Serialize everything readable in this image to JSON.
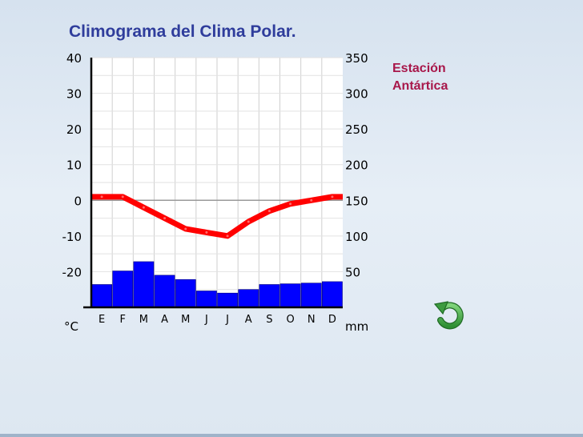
{
  "title": "Climograma del Clima Polar.",
  "station": {
    "line1": "Estación",
    "line2": "Antártica"
  },
  "colors": {
    "title": "#2f3d9c",
    "station": "#a8174a",
    "temperature": "#ff0000",
    "precipitation": "#0000ff",
    "replay_icon": "#4aa84a"
  },
  "replay": {
    "icon": "rotate-ccw-arrow-icon"
  },
  "chart_data": {
    "type": "bar",
    "categories": [
      "E",
      "F",
      "M",
      "A",
      "M",
      "J",
      "J",
      "A",
      "S",
      "O",
      "N",
      "D"
    ],
    "series": [
      {
        "kind": "bar",
        "axis": "right",
        "values": [
          32,
          51,
          64,
          45,
          39,
          23,
          20,
          25,
          32,
          33,
          34,
          36
        ]
      },
      {
        "kind": "line",
        "axis": "left",
        "values": [
          1,
          1,
          -2,
          -5,
          -8,
          -9,
          -10,
          -6,
          -3,
          -1,
          0,
          1
        ]
      }
    ],
    "y_left": {
      "unit": "°C",
      "ticks": [
        "40",
        "30",
        "20",
        "10",
        "0",
        "-10",
        "-20"
      ],
      "ylim": [
        -30,
        40
      ]
    },
    "y_right": {
      "unit": "mm",
      "ticks": [
        "350",
        "300",
        "250",
        "200",
        "150",
        "100",
        "50"
      ],
      "ylim": [
        0,
        350
      ]
    },
    "grid": true,
    "reference_line_at": 0
  }
}
